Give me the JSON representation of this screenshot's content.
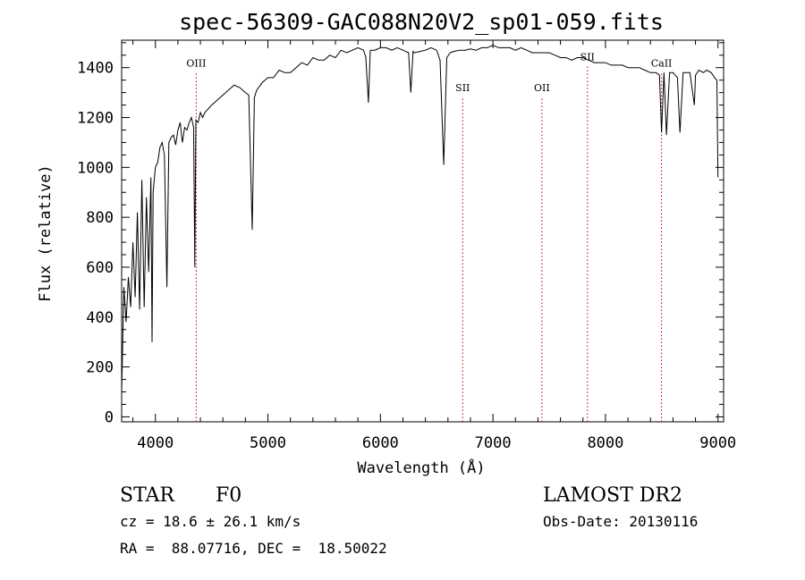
{
  "chart_data": {
    "type": "line",
    "title": "spec-56309-GAC088N20V2_sp01-059.fits",
    "xlabel": "Wavelength (Å)",
    "ylabel": "Flux (relative)",
    "xlim": [
      3700,
      9050
    ],
    "ylim": [
      -20,
      1510
    ],
    "xticks": [
      4000,
      5000,
      6000,
      7000,
      8000,
      9000
    ],
    "yticks": [
      0,
      200,
      400,
      600,
      800,
      1000,
      1200,
      1400
    ],
    "grid": false,
    "series": [
      {
        "x": [
          3700,
          3720,
          3740,
          3760,
          3780,
          3800,
          3820,
          3840,
          3860,
          3880,
          3900,
          3920,
          3940,
          3960,
          3970,
          3980,
          4000,
          4020,
          4040,
          4060,
          4080,
          4102,
          4120,
          4140,
          4160,
          4180,
          4200,
          4220,
          4240,
          4260,
          4280,
          4300,
          4320,
          4340,
          4350,
          4360,
          4380,
          4400,
          4420,
          4440,
          4460,
          4480,
          4500,
          4550,
          4600,
          4650,
          4700,
          4750,
          4800,
          4830,
          4861,
          4880,
          4900,
          4950,
          5000,
          5050,
          5100,
          5150,
          5200,
          5250,
          5300,
          5350,
          5400,
          5450,
          5500,
          5550,
          5600,
          5650,
          5700,
          5750,
          5800,
          5850,
          5870,
          5893,
          5910,
          5950,
          6000,
          6050,
          6100,
          6150,
          6200,
          6250,
          6270,
          6290,
          6300,
          6350,
          6400,
          6450,
          6500,
          6530,
          6563,
          6590,
          6620,
          6650,
          6700,
          6750,
          6800,
          6850,
          6900,
          6950,
          7000,
          7050,
          7100,
          7150,
          7200,
          7250,
          7300,
          7350,
          7400,
          7450,
          7500,
          7550,
          7600,
          7650,
          7700,
          7750,
          7800,
          7850,
          7900,
          7950,
          8000,
          8050,
          8100,
          8150,
          8200,
          8250,
          8300,
          8350,
          8400,
          8450,
          8480,
          8498,
          8520,
          8542,
          8570,
          8600,
          8640,
          8662,
          8690,
          8720,
          8750,
          8790,
          8800,
          8830,
          8870,
          8900,
          8940,
          8970,
          8990,
          9000
        ],
        "y": [
          100,
          520,
          380,
          560,
          440,
          700,
          480,
          820,
          430,
          950,
          440,
          880,
          580,
          960,
          300,
          900,
          1000,
          1020,
          1080,
          1100,
          1050,
          520,
          1100,
          1120,
          1130,
          1090,
          1150,
          1180,
          1100,
          1160,
          1150,
          1180,
          1200,
          1160,
          600,
          1190,
          1180,
          1220,
          1200,
          1220,
          1230,
          1240,
          1250,
          1270,
          1290,
          1310,
          1330,
          1320,
          1300,
          1290,
          750,
          1280,
          1310,
          1340,
          1360,
          1360,
          1390,
          1380,
          1380,
          1400,
          1420,
          1410,
          1440,
          1430,
          1430,
          1450,
          1440,
          1470,
          1460,
          1470,
          1480,
          1470,
          1440,
          1260,
          1470,
          1470,
          1480,
          1480,
          1470,
          1480,
          1470,
          1460,
          1300,
          1465,
          1460,
          1465,
          1470,
          1480,
          1470,
          1430,
          1010,
          1440,
          1460,
          1465,
          1470,
          1470,
          1475,
          1470,
          1480,
          1480,
          1490,
          1480,
          1480,
          1480,
          1470,
          1480,
          1470,
          1460,
          1460,
          1460,
          1460,
          1450,
          1440,
          1440,
          1430,
          1440,
          1440,
          1430,
          1420,
          1420,
          1420,
          1410,
          1410,
          1410,
          1400,
          1400,
          1400,
          1390,
          1380,
          1380,
          1370,
          1140,
          1380,
          1130,
          1380,
          1380,
          1360,
          1140,
          1380,
          1380,
          1380,
          1250,
          1370,
          1390,
          1380,
          1390,
          1380,
          1360,
          1350,
          960
        ]
      }
    ],
    "line_markers": [
      {
        "label": "OIII",
        "x": 4363,
        "label_y": 1405
      },
      {
        "label": "SII",
        "x": 6731,
        "label_y": 1305
      },
      {
        "label": "OII",
        "x": 7435,
        "label_y": 1305
      },
      {
        "label": "SII",
        "x": 7840,
        "label_y": 1430
      },
      {
        "label": "CaII",
        "x": 8498,
        "label_y": 1405
      }
    ],
    "marker_color": "#c00000",
    "line_color": "#000000"
  },
  "info": {
    "object_type": "STAR",
    "subclass": "F0",
    "survey": "LAMOST DR2",
    "redshift": "cz = 18.6 ± 26.1 km/s",
    "obs_date": "Obs-Date: 20130116",
    "coords": "RA =  88.07716, DEC =  18.50022"
  }
}
